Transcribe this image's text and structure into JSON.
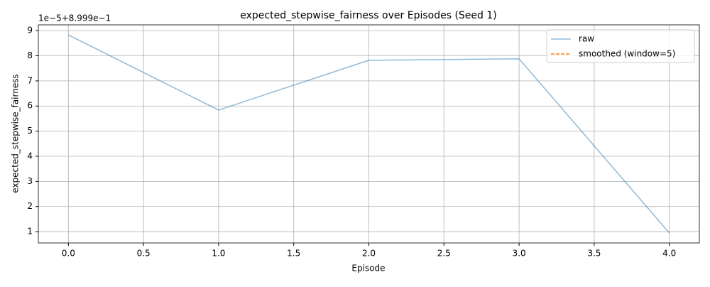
{
  "chart_data": {
    "type": "line",
    "title": "expected_stepwise_fairness over Episodes (Seed 1)",
    "xlabel": "Episode",
    "ylabel": "expected_stepwise_fairness",
    "y_offset_text": "1e−5+8.999e−1",
    "x": [
      0,
      1,
      2,
      3,
      4
    ],
    "series": [
      {
        "name": "raw",
        "color": "#1f77b4",
        "values": [
          8.83,
          5.84,
          7.82,
          7.88,
          0.95
        ]
      },
      {
        "name": "smoothed (window=5)",
        "color": "#ff7f0e",
        "values": [
          null,
          null,
          null,
          null,
          null
        ]
      }
    ],
    "xlim": [
      -0.2,
      4.2
    ],
    "xticks": [
      {
        "value": 0,
        "label": "0.0"
      },
      {
        "value": 0.5,
        "label": "0.5"
      },
      {
        "value": 1,
        "label": "1.0"
      },
      {
        "value": 1.5,
        "label": "1.5"
      },
      {
        "value": 2,
        "label": "2.0"
      },
      {
        "value": 2.5,
        "label": "2.5"
      },
      {
        "value": 3,
        "label": "3.0"
      },
      {
        "value": 3.5,
        "label": "3.5"
      },
      {
        "value": 4,
        "label": "4.0"
      }
    ],
    "ylim": [
      0.55,
      9.23
    ],
    "yticks": [
      1,
      2,
      3,
      4,
      5,
      6,
      7,
      8,
      9
    ],
    "grid": true,
    "legend": "upper right"
  }
}
